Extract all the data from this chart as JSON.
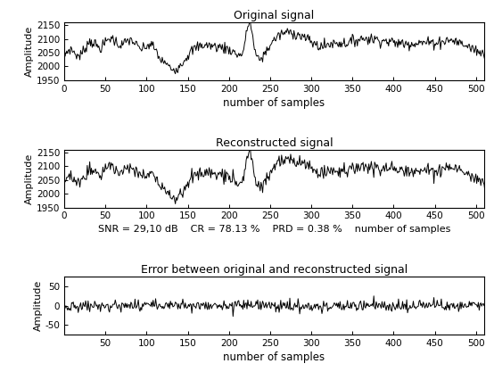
{
  "title1": "Original signal",
  "title2": "Reconstructed signal",
  "title3": "Error between original and reconstructed signal",
  "ylabel": "Amplitude",
  "xlabel": "number of samples",
  "snr_text": "SNR = 29,10 dB    CR = 78.13 %    PRD = 0.38 %    number of samples",
  "ylim1": [
    1950,
    2160
  ],
  "ylim2": [
    1950,
    2160
  ],
  "ylim3": [
    -75,
    75
  ],
  "xlim": [
    0,
    510
  ],
  "yticks1": [
    1950,
    2000,
    2050,
    2100,
    2150
  ],
  "yticks2": [
    1950,
    2000,
    2050,
    2100,
    2150
  ],
  "yticks3": [
    -50,
    0,
    50
  ],
  "xticks": [
    0,
    50,
    100,
    150,
    200,
    250,
    300,
    350,
    400,
    450,
    500
  ],
  "xticks3": [
    50,
    100,
    150,
    200,
    250,
    300,
    350,
    400,
    450,
    500
  ],
  "line_color": "#000000",
  "background_color": "#ffffff",
  "line_width": 0.7,
  "n_samples": 512
}
